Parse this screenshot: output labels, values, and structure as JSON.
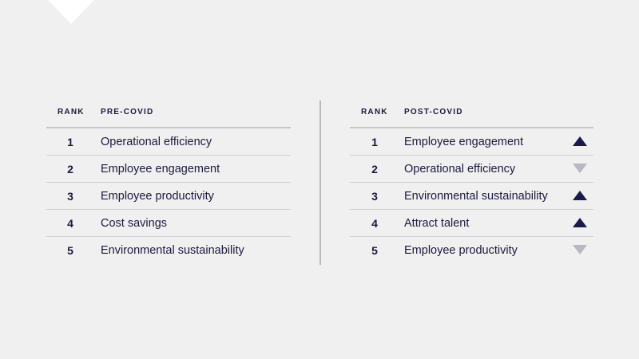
{
  "pre_covid": {
    "rank_header": "RANK",
    "title": "PRE-COVID",
    "rows": [
      {
        "rank": "1",
        "label": "Operational efficiency"
      },
      {
        "rank": "2",
        "label": "Employee engagement"
      },
      {
        "rank": "3",
        "label": "Employee productivity"
      },
      {
        "rank": "4",
        "label": "Cost savings"
      },
      {
        "rank": "5",
        "label": "Environmental sustainability"
      }
    ]
  },
  "post_covid": {
    "rank_header": "RANK",
    "title": "POST-COVID",
    "rows": [
      {
        "rank": "1",
        "label": "Employee engagement",
        "trend": "up"
      },
      {
        "rank": "2",
        "label": "Operational efficiency",
        "trend": "down"
      },
      {
        "rank": "3",
        "label": "Environmental sustainability",
        "trend": "up"
      },
      {
        "rank": "4",
        "label": "Attract talent",
        "trend": "up"
      },
      {
        "rank": "5",
        "label": "Employee productivity",
        "trend": "down"
      }
    ]
  },
  "colors": {
    "background": "#f0f0f0",
    "text": "#1a1a3e",
    "trend_up": "#1a1a4a",
    "trend_down": "#b8b8c2"
  },
  "icons": {
    "up": "triangle-up-icon",
    "down": "triangle-down-icon"
  }
}
